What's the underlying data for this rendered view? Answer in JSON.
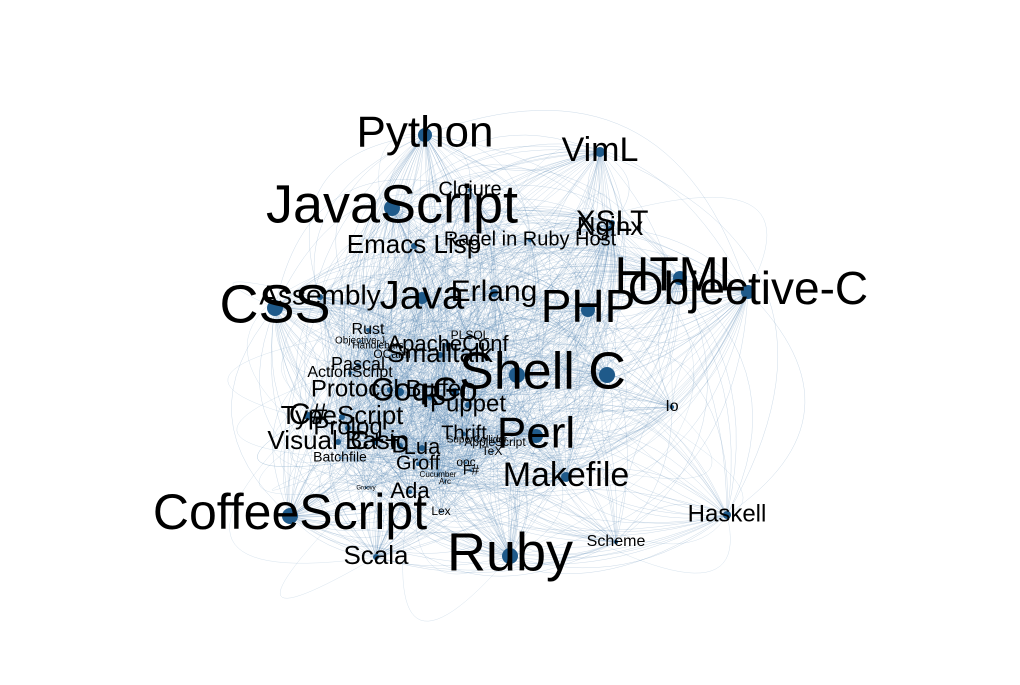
{
  "colors": {
    "edge": "#4a7fab",
    "node": "#1f5a8a",
    "label": "#000000",
    "background": "#ffffff"
  },
  "nodes": [
    {
      "id": "python",
      "label": "Python",
      "size": 44,
      "r": 7
    },
    {
      "id": "vim",
      "label": "VimL",
      "size": 34,
      "r": 5
    },
    {
      "id": "js",
      "label": "JavaScript",
      "size": 54,
      "r": 8
    },
    {
      "id": "clojure",
      "label": "Clojure",
      "size": 20,
      "r": 2
    },
    {
      "id": "xslt",
      "label": "XSLT",
      "size": 30,
      "r": 3
    },
    {
      "id": "nginx",
      "label": "Nginx",
      "size": 26,
      "r": 2
    },
    {
      "id": "ragel",
      "label": "Ragel in Ruby Host",
      "size": 20,
      "r": 2
    },
    {
      "id": "elisp",
      "label": "Emacs Lisp",
      "size": 26,
      "r": 3
    },
    {
      "id": "html",
      "label": "HTML",
      "size": 48,
      "r": 7
    },
    {
      "id": "css",
      "label": "CSS",
      "size": 54,
      "r": 8
    },
    {
      "id": "assembly",
      "label": "Assembly",
      "size": 28,
      "r": 3
    },
    {
      "id": "java",
      "label": "Java",
      "size": 40,
      "r": 6
    },
    {
      "id": "erlang",
      "label": "Erlang",
      "size": 30,
      "r": 4
    },
    {
      "id": "php",
      "label": "PHP",
      "size": 46,
      "r": 7
    },
    {
      "id": "objc",
      "label": "Objective-C",
      "size": 46,
      "r": 7
    },
    {
      "id": "rust",
      "label": "Rust",
      "size": 16,
      "r": 2
    },
    {
      "id": "plsql",
      "label": "PLSQL",
      "size": 12,
      "r": 1
    },
    {
      "id": "objj",
      "label": "Objective-J",
      "size": 10,
      "r": 1
    },
    {
      "id": "handlebars",
      "label": "Handlebars",
      "size": 10,
      "r": 1
    },
    {
      "id": "apacheconf",
      "label": "ApacheConf",
      "size": 22,
      "r": 3
    },
    {
      "id": "smalltalk",
      "label": "Smalltalk",
      "size": 26,
      "r": 3
    },
    {
      "id": "ocaml",
      "label": "OCaml",
      "size": 12,
      "r": 1
    },
    {
      "id": "shell",
      "label": "Shell",
      "size": 52,
      "r": 8
    },
    {
      "id": "c",
      "label": "C",
      "size": 52,
      "r": 8
    },
    {
      "id": "pascal",
      "label": "Pascal",
      "size": 18,
      "r": 2
    },
    {
      "id": "actionscript",
      "label": "ActionScript",
      "size": 16,
      "r": 2
    },
    {
      "id": "protobuf",
      "label": "Protocol Buffer",
      "size": 24,
      "r": 3
    },
    {
      "id": "coq",
      "label": "Coq",
      "size": 32,
      "r": 4
    },
    {
      "id": "go",
      "label": "Go",
      "size": 34,
      "r": 4
    },
    {
      "id": "r",
      "label": "R",
      "size": 28,
      "r": 3
    },
    {
      "id": "puppet",
      "label": "Puppet",
      "size": 24,
      "r": 3
    },
    {
      "id": "io",
      "label": "Io",
      "size": 16,
      "r": 2
    },
    {
      "id": "csharp",
      "label": "C#",
      "size": 30,
      "r": 4
    },
    {
      "id": "typescript",
      "label": "TypeScript",
      "size": 26,
      "r": 3
    },
    {
      "id": "prolog",
      "label": "Prolog",
      "size": 24,
      "r": 3
    },
    {
      "id": "thrift",
      "label": "Thrift",
      "size": 20,
      "r": 2
    },
    {
      "id": "perl",
      "label": "Perl",
      "size": 44,
      "r": 7
    },
    {
      "id": "visualbasic",
      "label": "Visual Basic",
      "size": 26,
      "r": 3
    },
    {
      "id": "cpp",
      "label": "C++",
      "size": 26,
      "r": 3
    },
    {
      "id": "d",
      "label": "D",
      "size": 24,
      "r": 3
    },
    {
      "id": "lua",
      "label": "Lua",
      "size": 22,
      "r": 3
    },
    {
      "id": "supercollider",
      "label": "SuperCollider",
      "size": 10,
      "r": 1
    },
    {
      "id": "applescript",
      "label": "AppleScript",
      "size": 12,
      "r": 1
    },
    {
      "id": "batchfile",
      "label": "Batchfile",
      "size": 14,
      "r": 1
    },
    {
      "id": "tex",
      "label": "TeX",
      "size": 12,
      "r": 1
    },
    {
      "id": "groff",
      "label": "Groff",
      "size": 20,
      "r": 2
    },
    {
      "id": "ooc",
      "label": "ooc",
      "size": 12,
      "r": 1
    },
    {
      "id": "fsharp",
      "label": "F#",
      "size": 14,
      "r": 1
    },
    {
      "id": "makefile",
      "label": "Makefile",
      "size": 34,
      "r": 5
    },
    {
      "id": "groovy",
      "label": "Groovy",
      "size": 6,
      "r": 1
    },
    {
      "id": "cucumber",
      "label": "Cucumber",
      "size": 8,
      "r": 1
    },
    {
      "id": "arc",
      "label": "Arc",
      "size": 8,
      "r": 1
    },
    {
      "id": "ada",
      "label": "Ada",
      "size": 22,
      "r": 2
    },
    {
      "id": "coffeescript",
      "label": "CoffeeScript",
      "size": 50,
      "r": 8
    },
    {
      "id": "lex",
      "label": "Lex",
      "size": 12,
      "r": 1
    },
    {
      "id": "haskell",
      "label": "Haskell",
      "size": 24,
      "r": 4
    },
    {
      "id": "scala",
      "label": "Scala",
      "size": 26,
      "r": 3
    },
    {
      "id": "scheme",
      "label": "Scheme",
      "size": 16,
      "r": 2
    },
    {
      "id": "ruby",
      "label": "Ruby",
      "size": 54,
      "r": 8
    }
  ]
}
